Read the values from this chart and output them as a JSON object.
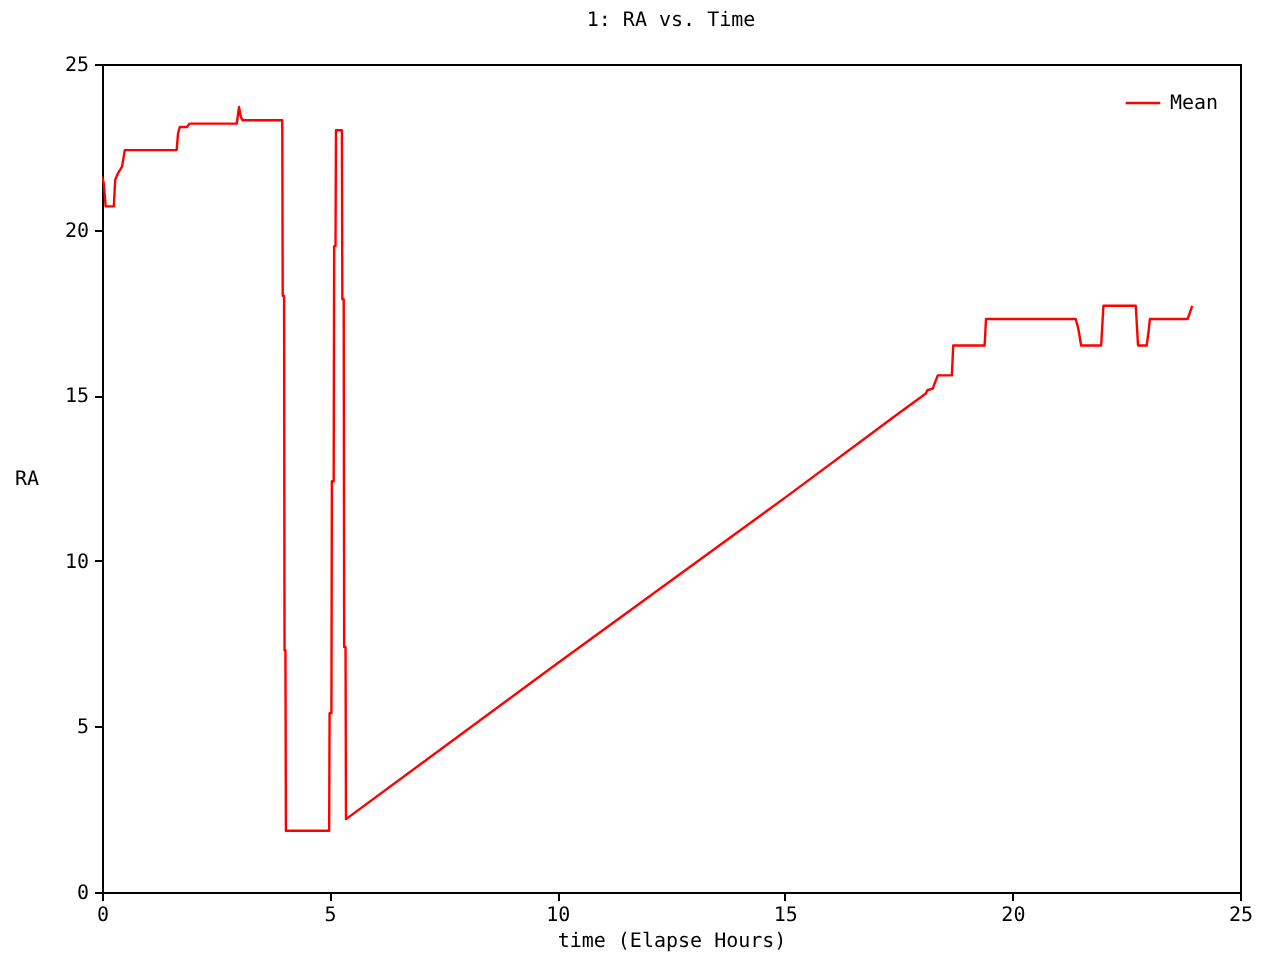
{
  "chart_data": {
    "type": "line",
    "title": "1: RA vs. Time",
    "xlabel": "time (Elapse Hours)",
    "ylabel": "RA",
    "x": [
      0,
      0.04,
      0.08,
      0.26,
      0.29,
      0.35,
      0.44,
      0.5,
      1.64,
      1.67,
      1.71,
      1.87,
      1.92,
      2.96,
      3.01,
      3.05,
      3.09,
      3.96,
      3.97,
      4.0,
      4.01,
      4.03,
      4.04,
      4.99,
      5.0,
      5.04,
      5.05,
      5.09,
      5.1,
      5.13,
      5.14,
      5.27,
      5.28,
      5.31,
      5.32,
      5.35,
      5.36,
      10,
      15,
      17.4,
      18.1,
      18.13,
      18.25,
      18.36,
      18.67,
      18.7,
      19.39,
      19.42,
      21.39,
      21.45,
      21.51,
      21.95,
      22.0,
      22.71,
      22.76,
      22.95,
      22.99,
      23.02,
      23.85,
      23.95
    ],
    "series": [
      {
        "name": "Mean",
        "color": "#ff0000",
        "values": [
          21.6,
          21.4,
          20.7,
          20.7,
          21.5,
          21.7,
          21.9,
          22.4,
          22.4,
          22.9,
          23.1,
          23.1,
          23.2,
          23.2,
          23.7,
          23.4,
          23.3,
          23.3,
          18.0,
          18.0,
          7.3,
          7.3,
          1.85,
          1.85,
          5.4,
          5.4,
          12.4,
          12.4,
          19.5,
          19.5,
          23.0,
          23.0,
          17.9,
          17.9,
          7.4,
          7.4,
          2.2,
          6.9,
          11.9,
          14.35,
          15.05,
          15.15,
          15.2,
          15.6,
          15.6,
          16.5,
          16.5,
          17.3,
          17.3,
          17.0,
          16.5,
          16.5,
          17.7,
          17.7,
          16.5,
          16.5,
          16.9,
          17.3,
          17.3,
          17.7
        ]
      }
    ],
    "xlim": [
      0,
      25
    ],
    "ylim": [
      0,
      25
    ],
    "xticks": [
      0,
      5,
      10,
      15,
      20,
      25
    ],
    "yticks": [
      0,
      5,
      10,
      15,
      20,
      25
    ],
    "legend": "top right",
    "grid": false,
    "marker": "none",
    "line_style": "solid"
  }
}
